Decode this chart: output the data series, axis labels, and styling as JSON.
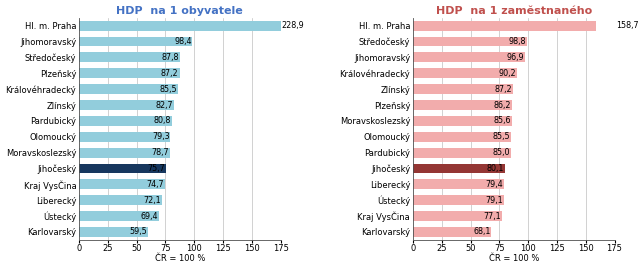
{
  "chart1": {
    "title": "HDP  na 1 obyvatele",
    "title_color": "#4472C4",
    "xlabel": "ČR = 100 %",
    "categories": [
      "Hl. m. Praha",
      "Jihomoravský",
      "Středočeský",
      "Plzeňský",
      "Královéhradecký",
      "Zlínský",
      "Pardubický",
      "Olomoucký",
      "Moravskoslezský",
      "Jihočeský",
      "Kraj VysČina",
      "Liberecký",
      "Ústecký",
      "Karlovarský"
    ],
    "values": [
      228.9,
      98.4,
      87.8,
      87.2,
      85.5,
      82.7,
      80.8,
      79.3,
      78.7,
      75.7,
      74.7,
      72.1,
      69.4,
      59.5
    ],
    "bar_colors": [
      "#92CDDC",
      "#92CDDC",
      "#92CDDC",
      "#92CDDC",
      "#92CDDC",
      "#92CDDC",
      "#92CDDC",
      "#92CDDC",
      "#92CDDC",
      "#17375E",
      "#92CDDC",
      "#92CDDC",
      "#92CDDC",
      "#92CDDC"
    ],
    "xlim": [
      0,
      175
    ],
    "xticks": [
      0,
      25,
      50,
      75,
      100,
      125,
      150,
      175
    ],
    "value_outside_indices": [
      0
    ]
  },
  "chart2": {
    "title": "HDP  na 1 zaměstnaného",
    "title_color": "#C0504D",
    "xlabel": "ČR = 100 %",
    "categories": [
      "Hl. m. Praha",
      "Středočeský",
      "Jihomoravský",
      "Královéhradecký",
      "Zlínský",
      "Plzeňský",
      "Moravskoslezský",
      "Olomoucký",
      "Pardubický",
      "Jihočeský",
      "Liberecký",
      "Ústecký",
      "Kraj VysČina",
      "Karlovarský"
    ],
    "values": [
      158.7,
      98.8,
      96.9,
      90.2,
      87.2,
      86.2,
      85.6,
      85.5,
      85.0,
      80.1,
      79.4,
      79.1,
      77.1,
      68.1
    ],
    "bar_colors": [
      "#F2ACAC",
      "#F2ACAC",
      "#F2ACAC",
      "#F2ACAC",
      "#F2ACAC",
      "#F2ACAC",
      "#F2ACAC",
      "#F2ACAC",
      "#F2ACAC",
      "#943634",
      "#F2ACAC",
      "#F2ACAC",
      "#F2ACAC",
      "#F2ACAC"
    ],
    "xlim": [
      0,
      175
    ],
    "xticks": [
      0,
      25,
      50,
      75,
      100,
      125,
      150,
      175
    ],
    "value_outside_indices": [
      0
    ]
  },
  "bar_height": 0.62,
  "label_fontsize": 6.0,
  "tick_fontsize": 6.0,
  "title_fontsize": 8.0,
  "value_fontsize": 5.8,
  "background_color": "#FFFFFF",
  "grid_color": "#BFBFBF",
  "border_color": "#4F4F4F"
}
